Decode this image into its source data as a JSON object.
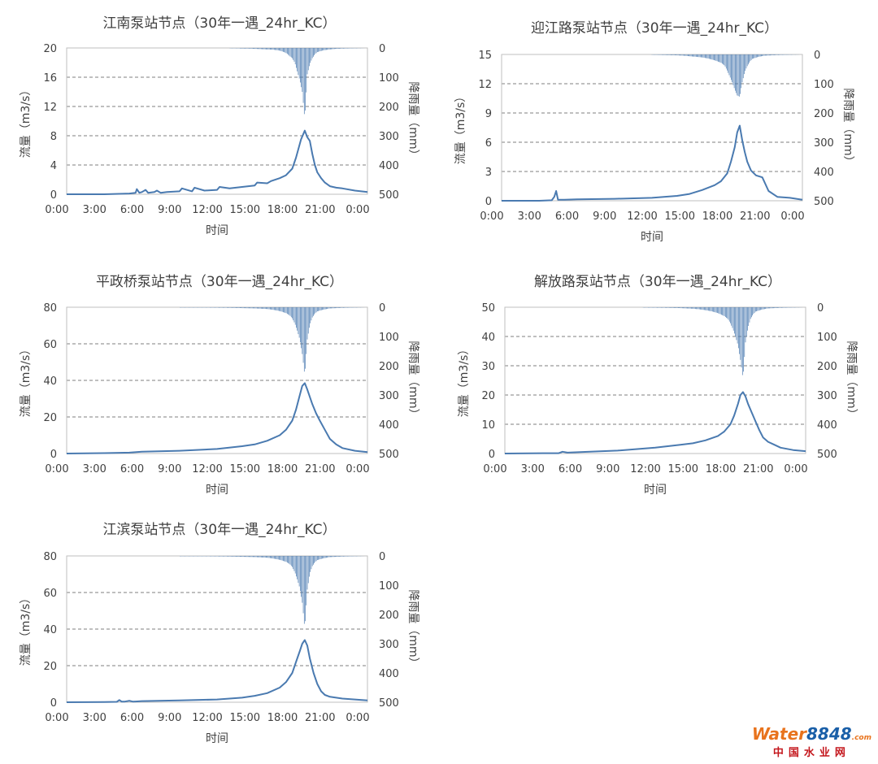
{
  "colors": {
    "series": "#4a7ab0",
    "grid": "#7f7f7f",
    "frame": "#bfbfbf",
    "text": "#404040"
  },
  "chart_data": [
    {
      "type": "line",
      "title": "江南泵站节点（30年一遇_24hr_KC）",
      "xlabel": "时间",
      "ylabel": "流量（m3/s）",
      "y2label": "降雨量（mm）",
      "xticks": [
        "0:00",
        "3:00",
        "6:00",
        "9:00",
        "12:00",
        "15:00",
        "18:00",
        "21:00",
        "0:00"
      ],
      "xlim": [
        0,
        24
      ],
      "ylim": [
        0,
        20
      ],
      "yticks": [
        0,
        4,
        8,
        12,
        16,
        20
      ],
      "y2lim": [
        0,
        500
      ],
      "y2ticks": [
        0,
        100,
        200,
        300,
        400,
        500
      ],
      "y2_inverted": true,
      "grid": "horizontal dashed",
      "series": [
        {
          "kind": "line",
          "x": [
            0,
            3,
            5,
            5.5,
            5.6,
            5.8,
            6,
            6.3,
            6.5,
            7,
            7.2,
            7.5,
            8,
            9,
            9.2,
            10,
            10.2,
            11,
            12,
            12.2,
            13,
            14,
            15,
            15.2,
            16,
            16.3,
            17,
            17.5,
            18,
            18.3,
            18.7,
            19,
            19.2,
            19.4,
            19.6,
            19.8,
            20,
            20.3,
            20.6,
            21,
            21.5,
            22,
            23,
            24
          ],
          "y": [
            0,
            0,
            0.1,
            0.2,
            0.7,
            0.2,
            0.3,
            0.6,
            0.2,
            0.3,
            0.5,
            0.2,
            0.3,
            0.4,
            0.8,
            0.4,
            0.9,
            0.5,
            0.6,
            1,
            0.8,
            1,
            1.2,
            1.6,
            1.5,
            1.8,
            2.2,
            2.6,
            3.5,
            5,
            7.5,
            8.7,
            7.8,
            7.3,
            5.5,
            4,
            3,
            2.2,
            1.6,
            1.1,
            0.9,
            0.8,
            0.5,
            0.3
          ]
        },
        {
          "kind": "rain",
          "x": [
            13,
            13.5,
            14,
            14.5,
            15,
            15.5,
            16,
            16.5,
            17,
            17.2,
            17.4,
            17.6,
            17.8,
            18,
            18.2,
            18.4,
            18.6,
            18.8,
            19,
            19.2,
            19.4,
            19.6,
            19.8,
            20,
            20.5,
            21,
            21.5,
            22,
            23,
            24
          ],
          "y": [
            1,
            1,
            2,
            2,
            3,
            4,
            5,
            6,
            9,
            12,
            15,
            20,
            28,
            35,
            50,
            80,
            110,
            150,
            245,
            90,
            55,
            35,
            22,
            14,
            8,
            5,
            3,
            2,
            1,
            0
          ]
        }
      ]
    },
    {
      "type": "line",
      "title": "迎江路泵站节点（30年一遇_24hr_KC）",
      "xlabel": "时间",
      "ylabel": "流量（m3/s）",
      "y2label": "降雨量（mm）",
      "xticks": [
        "0:00",
        "3:00",
        "6:00",
        "9:00",
        "12:00",
        "15:00",
        "18:00",
        "21:00",
        "0:00"
      ],
      "xlim": [
        0,
        24
      ],
      "ylim": [
        0,
        15
      ],
      "yticks": [
        0,
        3,
        6,
        9,
        12,
        15
      ],
      "y2lim": [
        0,
        500
      ],
      "y2ticks": [
        0,
        100,
        200,
        300,
        400,
        500
      ],
      "y2_inverted": true,
      "grid": "horizontal dashed",
      "series": [
        {
          "kind": "line",
          "x": [
            0,
            3,
            4,
            4.2,
            4.35,
            4.5,
            5,
            6,
            9,
            12,
            14,
            15,
            16,
            17,
            17.5,
            18,
            18.3,
            18.6,
            18.8,
            19,
            19.2,
            19.4,
            19.6,
            19.9,
            20.3,
            20.8,
            21.3,
            22,
            23,
            24
          ],
          "y": [
            0,
            0,
            0.05,
            0.4,
            1.0,
            0.1,
            0.1,
            0.15,
            0.2,
            0.3,
            0.5,
            0.7,
            1.1,
            1.6,
            2.0,
            2.8,
            4.0,
            5.5,
            7.0,
            7.7,
            6.2,
            5.0,
            4.0,
            3.1,
            2.6,
            2.4,
            1.0,
            0.4,
            0.3,
            0.1
          ]
        },
        {
          "kind": "rain",
          "x": [
            12,
            13,
            14,
            14.5,
            15,
            15.5,
            16,
            16.5,
            17,
            17.5,
            17.8,
            18,
            18.2,
            18.4,
            18.6,
            18.8,
            19,
            19.2,
            19.4,
            19.6,
            19.8,
            20,
            20.5,
            21,
            22,
            24
          ],
          "y": [
            1,
            2,
            3,
            4,
            6,
            8,
            10,
            14,
            20,
            28,
            38,
            55,
            75,
            95,
            120,
            140,
            145,
            95,
            60,
            40,
            25,
            15,
            8,
            4,
            2,
            0
          ]
        }
      ]
    },
    {
      "type": "line",
      "title": "平政桥泵站节点（30年一遇_24hr_KC）",
      "xlabel": "时间",
      "ylabel": "流量（m3/s）",
      "y2label": "降雨量（mm）",
      "xticks": [
        "0:00",
        "3:00",
        "6:00",
        "9:00",
        "12:00",
        "15:00",
        "18:00",
        "21:00",
        "0:00"
      ],
      "xlim": [
        0,
        24
      ],
      "ylim": [
        0,
        80
      ],
      "yticks": [
        0,
        20,
        40,
        60,
        80
      ],
      "y2lim": [
        0,
        500
      ],
      "y2ticks": [
        0,
        100,
        200,
        300,
        400,
        500
      ],
      "y2_inverted": true,
      "grid": "horizontal dashed",
      "series": [
        {
          "kind": "line",
          "x": [
            0,
            3,
            5,
            6,
            9,
            12,
            14,
            15,
            16,
            17,
            17.5,
            18,
            18.3,
            18.6,
            18.8,
            19,
            19.2,
            19.4,
            19.6,
            19.9,
            20.2,
            20.6,
            21,
            21.5,
            22,
            23,
            24
          ],
          "y": [
            0,
            0.2,
            0.5,
            1,
            1.5,
            2.5,
            4,
            5,
            7,
            10,
            13,
            18,
            24,
            32,
            37,
            38.5,
            35,
            31,
            27,
            22,
            18,
            13,
            8,
            5,
            3,
            1.5,
            0.8
          ]
        },
        {
          "kind": "rain",
          "x": [
            9,
            11,
            13,
            14,
            15,
            16,
            16.5,
            17,
            17.5,
            17.8,
            18,
            18.2,
            18.4,
            18.6,
            18.8,
            19,
            19.2,
            19.4,
            19.6,
            19.8,
            20,
            20.5,
            21,
            22,
            23,
            24
          ],
          "y": [
            1,
            1,
            2,
            3,
            4,
            6,
            9,
            13,
            20,
            28,
            38,
            55,
            80,
            110,
            160,
            235,
            110,
            60,
            35,
            22,
            14,
            8,
            4,
            2,
            1,
            0
          ]
        }
      ]
    },
    {
      "type": "line",
      "title": "解放路泵站节点（30年一遇_24hr_KC）",
      "xlabel": "时间",
      "ylabel": "流量（m3/s）",
      "y2label": "降雨量（mm）",
      "xticks": [
        "0:00",
        "3:00",
        "6:00",
        "9:00",
        "12:00",
        "15:00",
        "18:00",
        "21:00",
        "0:00"
      ],
      "xlim": [
        0,
        24
      ],
      "ylim": [
        0,
        50
      ],
      "yticks": [
        0,
        10,
        20,
        30,
        40,
        50
      ],
      "y2lim": [
        0,
        500
      ],
      "y2ticks": [
        0,
        100,
        200,
        300,
        400,
        500
      ],
      "y2_inverted": true,
      "grid": "horizontal dashed",
      "series": [
        {
          "kind": "line",
          "x": [
            0,
            3,
            4.3,
            4.6,
            5,
            6,
            9,
            12,
            14,
            15,
            16,
            17,
            17.5,
            18,
            18.3,
            18.6,
            18.8,
            19,
            19.2,
            19.4,
            19.7,
            20,
            20.3,
            20.6,
            21,
            21.5,
            22,
            23,
            24
          ],
          "y": [
            0,
            0.1,
            0.1,
            0.6,
            0.3,
            0.5,
            1,
            2,
            3,
            3.5,
            4.5,
            6,
            7.5,
            10,
            13,
            17,
            20,
            21,
            19.5,
            17,
            14,
            11,
            8,
            5.5,
            4,
            3,
            2,
            1.2,
            0.8
          ]
        },
        {
          "kind": "rain",
          "x": [
            11,
            13,
            14,
            15,
            15.5,
            16,
            16.5,
            17,
            17.5,
            17.8,
            18,
            18.2,
            18.4,
            18.6,
            18.8,
            19,
            19.2,
            19.4,
            19.6,
            19.8,
            20,
            20.5,
            21,
            22,
            24
          ],
          "y": [
            1,
            2,
            3,
            5,
            7,
            10,
            14,
            20,
            30,
            40,
            55,
            75,
            100,
            130,
            180,
            245,
            120,
            70,
            40,
            25,
            15,
            8,
            4,
            2,
            0
          ]
        }
      ]
    },
    {
      "type": "line",
      "title": "江滨泵站节点（30年一遇_24hr_KC）",
      "xlabel": "时间",
      "ylabel": "流量（m3/s）",
      "y2label": "降雨量（mm）",
      "xticks": [
        "0:00",
        "3:00",
        "6:00",
        "9:00",
        "12:00",
        "15:00",
        "18:00",
        "21:00",
        "0:00"
      ],
      "xlim": [
        0,
        24
      ],
      "ylim": [
        0,
        80
      ],
      "yticks": [
        0,
        20,
        40,
        60,
        80
      ],
      "y2lim": [
        0,
        500
      ],
      "y2ticks": [
        0,
        100,
        200,
        300,
        400,
        500
      ],
      "y2_inverted": true,
      "grid": "horizontal dashed",
      "series": [
        {
          "kind": "line",
          "x": [
            0,
            3,
            4,
            4.2,
            4.4,
            4.6,
            5,
            5.3,
            5.5,
            6,
            9,
            12,
            14,
            15,
            16,
            17,
            17.5,
            18,
            18.3,
            18.6,
            18.8,
            19,
            19.2,
            19.4,
            19.7,
            20,
            20.3,
            20.6,
            21,
            22,
            23,
            24
          ],
          "y": [
            0,
            0.1,
            0.2,
            1.2,
            0.3,
            0.3,
            0.8,
            0.3,
            0.4,
            0.6,
            1,
            1.5,
            2.5,
            3.5,
            5,
            8,
            11,
            16,
            22,
            28,
            32,
            34,
            31,
            24,
            16,
            10,
            6,
            4,
            3,
            2,
            1.5,
            1
          ]
        },
        {
          "kind": "rain",
          "x": [
            9,
            11,
            13,
            14,
            15,
            16,
            16.5,
            17,
            17.5,
            17.8,
            18,
            18.2,
            18.4,
            18.6,
            18.8,
            19,
            19.2,
            19.4,
            19.6,
            19.8,
            20,
            20.5,
            21,
            22,
            23,
            24
          ],
          "y": [
            1,
            1,
            2,
            3,
            4,
            6,
            9,
            13,
            20,
            28,
            38,
            55,
            80,
            110,
            160,
            250,
            115,
            60,
            35,
            22,
            14,
            8,
            4,
            2,
            1,
            0
          ]
        }
      ]
    }
  ],
  "watermark": {
    "brand_a": "Water",
    "brand_b": "8848",
    "brand_c": ".com",
    "subtitle": "中国水业网"
  }
}
